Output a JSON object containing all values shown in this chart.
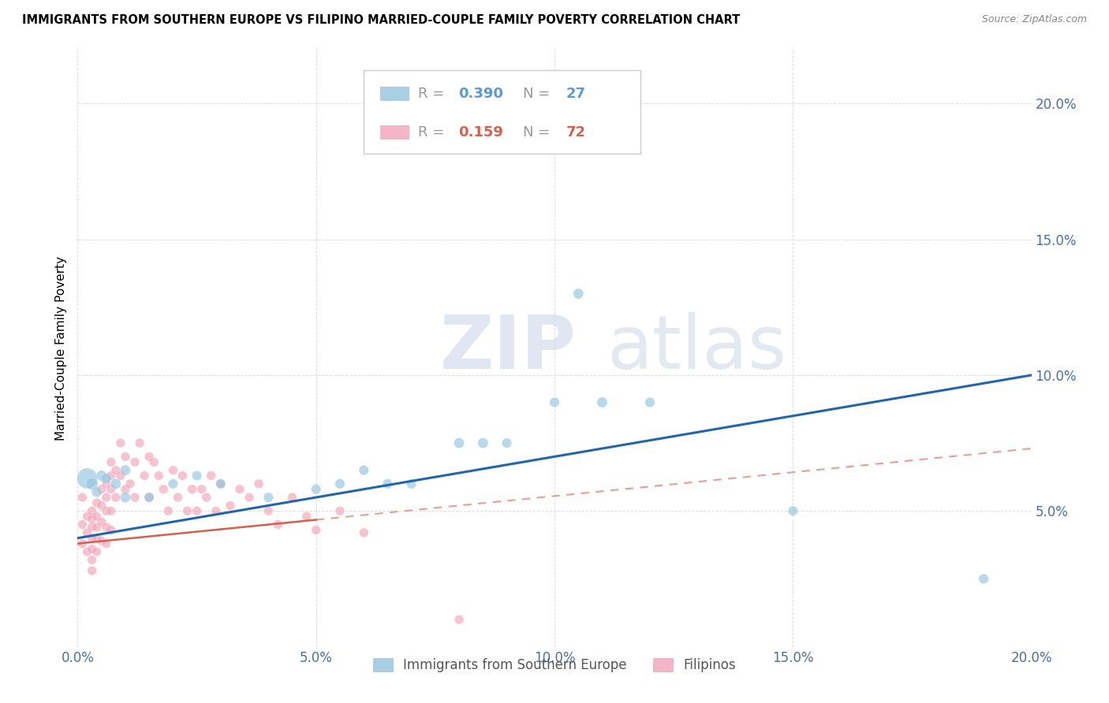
{
  "title": "IMMIGRANTS FROM SOUTHERN EUROPE VS FILIPINO MARRIED-COUPLE FAMILY POVERTY CORRELATION CHART",
  "source": "Source: ZipAtlas.com",
  "ylabel": "Married-Couple Family Poverty",
  "xlim": [
    0.0,
    0.2
  ],
  "ylim": [
    0.0,
    0.22
  ],
  "xticks": [
    0.0,
    0.05,
    0.1,
    0.15,
    0.2
  ],
  "yticks": [
    0.05,
    0.1,
    0.15,
    0.2
  ],
  "ytick_labels": [
    "5.0%",
    "10.0%",
    "15.0%",
    "20.0%"
  ],
  "xtick_labels": [
    "0.0%",
    "5.0%",
    "10.0%",
    "15.0%",
    "20.0%"
  ],
  "legend_blue_r": "0.390",
  "legend_blue_n": "27",
  "legend_pink_r": "0.159",
  "legend_pink_n": "72",
  "legend_label_blue": "Immigrants from Southern Europe",
  "legend_label_pink": "Filipinos",
  "blue_color": "#92c5de",
  "pink_color": "#f4a3b8",
  "trendline_blue_color": "#2166ac",
  "trendline_pink_color": "#d6604d",
  "watermark_zip": "ZIP",
  "watermark_atlas": "atlas",
  "blue_points_x": [
    0.002,
    0.003,
    0.004,
    0.005,
    0.006,
    0.008,
    0.01,
    0.01,
    0.015,
    0.02,
    0.025,
    0.03,
    0.04,
    0.05,
    0.055,
    0.06,
    0.065,
    0.07,
    0.08,
    0.085,
    0.09,
    0.1,
    0.105,
    0.11,
    0.12,
    0.15,
    0.19
  ],
  "blue_points_y": [
    0.062,
    0.06,
    0.057,
    0.063,
    0.062,
    0.06,
    0.065,
    0.055,
    0.055,
    0.06,
    0.063,
    0.06,
    0.055,
    0.058,
    0.06,
    0.065,
    0.06,
    0.06,
    0.075,
    0.075,
    0.075,
    0.09,
    0.13,
    0.09,
    0.09,
    0.05,
    0.025
  ],
  "blue_sizes": [
    350,
    120,
    90,
    90,
    90,
    90,
    90,
    90,
    80,
    80,
    80,
    80,
    80,
    80,
    80,
    80,
    80,
    80,
    90,
    90,
    80,
    80,
    90,
    90,
    80,
    80,
    80
  ],
  "pink_points_x": [
    0.001,
    0.001,
    0.001,
    0.002,
    0.002,
    0.002,
    0.003,
    0.003,
    0.003,
    0.003,
    0.003,
    0.003,
    0.003,
    0.004,
    0.004,
    0.004,
    0.004,
    0.004,
    0.005,
    0.005,
    0.005,
    0.005,
    0.006,
    0.006,
    0.006,
    0.006,
    0.006,
    0.007,
    0.007,
    0.007,
    0.007,
    0.007,
    0.008,
    0.008,
    0.009,
    0.009,
    0.01,
    0.01,
    0.011,
    0.012,
    0.012,
    0.013,
    0.014,
    0.015,
    0.015,
    0.016,
    0.017,
    0.018,
    0.019,
    0.02,
    0.021,
    0.022,
    0.023,
    0.024,
    0.025,
    0.026,
    0.027,
    0.028,
    0.029,
    0.03,
    0.032,
    0.034,
    0.036,
    0.038,
    0.04,
    0.042,
    0.045,
    0.048,
    0.05,
    0.055,
    0.06,
    0.08
  ],
  "pink_points_y": [
    0.055,
    0.045,
    0.038,
    0.048,
    0.042,
    0.035,
    0.05,
    0.047,
    0.044,
    0.04,
    0.036,
    0.032,
    0.028,
    0.053,
    0.048,
    0.044,
    0.04,
    0.035,
    0.058,
    0.052,
    0.046,
    0.039,
    0.06,
    0.055,
    0.05,
    0.044,
    0.038,
    0.068,
    0.063,
    0.058,
    0.05,
    0.043,
    0.065,
    0.055,
    0.075,
    0.063,
    0.07,
    0.058,
    0.06,
    0.068,
    0.055,
    0.075,
    0.063,
    0.07,
    0.055,
    0.068,
    0.063,
    0.058,
    0.05,
    0.065,
    0.055,
    0.063,
    0.05,
    0.058,
    0.05,
    0.058,
    0.055,
    0.063,
    0.05,
    0.06,
    0.052,
    0.058,
    0.055,
    0.06,
    0.05,
    0.045,
    0.055,
    0.048,
    0.043,
    0.05,
    0.042,
    0.01
  ],
  "pink_sizes": [
    70,
    70,
    70,
    70,
    70,
    70,
    70,
    70,
    70,
    70,
    70,
    70,
    70,
    70,
    70,
    70,
    70,
    70,
    70,
    70,
    70,
    70,
    70,
    70,
    70,
    70,
    70,
    70,
    70,
    70,
    70,
    70,
    70,
    70,
    70,
    70,
    70,
    70,
    70,
    70,
    70,
    70,
    70,
    70,
    70,
    70,
    70,
    70,
    70,
    70,
    70,
    70,
    70,
    70,
    70,
    70,
    70,
    70,
    70,
    70,
    70,
    70,
    70,
    70,
    70,
    70,
    70,
    70,
    70,
    70,
    70,
    70
  ]
}
